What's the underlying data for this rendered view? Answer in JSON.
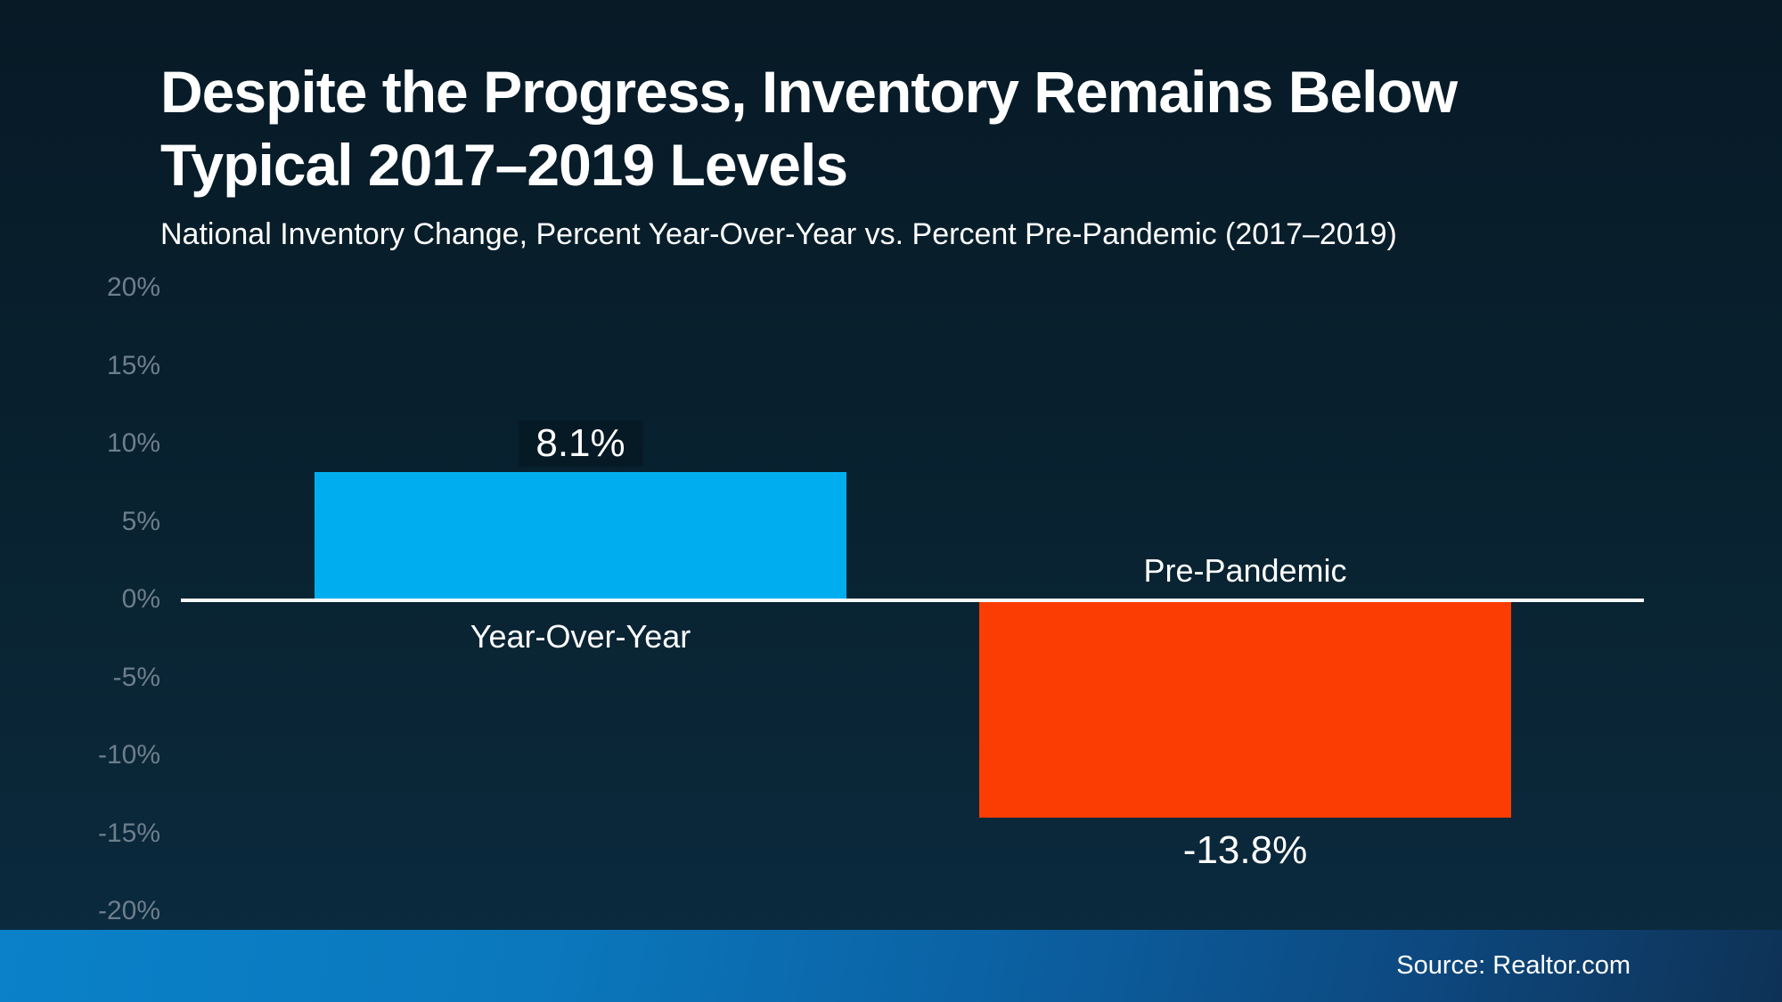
{
  "title": {
    "line1": "Despite the Progress, Inventory Remains Below",
    "line2": "Typical 2017–2019 Levels"
  },
  "subtitle": "National Inventory Change, Percent Year-Over-Year vs. Percent Pre-Pandemic (2017–2019)",
  "footer": {
    "source_label": "Source: Realtor.com"
  },
  "colors": {
    "background_top": "#071a26",
    "background_bottom": "#0b2b40",
    "baseline": "#f7fafc",
    "axis_label": "#6e7e8c",
    "footer_left": "#0a81c9",
    "footer_right": "#0e3256",
    "text": "#ffffff"
  },
  "chart_data": {
    "type": "bar",
    "title": "Despite the Progress, Inventory Remains Below Typical 2017–2019 Levels",
    "subtitle": "National Inventory Change, Percent Year-Over-Year vs. Percent Pre-Pandemic (2017–2019)",
    "categories": [
      "Year-Over-Year",
      "Pre-Pandemic"
    ],
    "values": [
      8.1,
      -13.8
    ],
    "value_labels": [
      "8.1%",
      "-13.8%"
    ],
    "colors": [
      "#00AEEF",
      "#FB3D03"
    ],
    "ylim": [
      -20,
      20
    ],
    "y_ticks": [
      "20%",
      "15%",
      "10%",
      "5%",
      "0%",
      "-5%",
      "-10%",
      "-15%",
      "-20%"
    ],
    "baseline": 0,
    "grid": false,
    "legend_position": "none",
    "source": "Source: Realtor.com"
  }
}
